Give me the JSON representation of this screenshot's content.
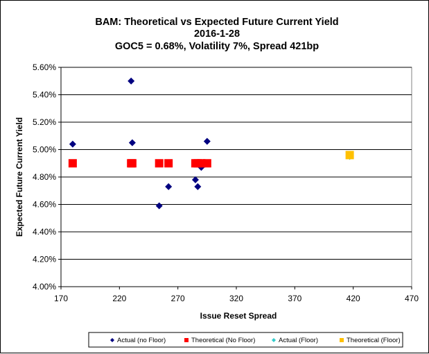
{
  "chart_data": {
    "type": "scatter",
    "title_lines": [
      "BAM: Theoretical vs Expected Future Current Yield",
      "2016-1-28",
      "GOC5 = 0.68%, Volatility 7%, Spread 421bp"
    ],
    "xlabel": "Issue Reset Spread",
    "ylabel": "Expected Future Current Yield",
    "xlim": [
      170,
      470
    ],
    "ylim": [
      4.0,
      5.6
    ],
    "x_ticks": [
      170,
      220,
      270,
      320,
      370,
      420,
      470
    ],
    "y_ticks": [
      4.0,
      4.2,
      4.4,
      4.6,
      4.8,
      5.0,
      5.2,
      5.4,
      5.6
    ],
    "x_tick_labels": [
      "170",
      "220",
      "270",
      "320",
      "370",
      "420",
      "470"
    ],
    "y_tick_labels": [
      "4.00%",
      "4.20%",
      "4.40%",
      "4.60%",
      "4.80%",
      "5.00%",
      "5.20%",
      "5.40%",
      "5.60%"
    ],
    "grid": "horizontal",
    "legend_position": "bottom",
    "series": [
      {
        "name": "Actual (no Floor)",
        "marker": "diamond",
        "color": "#000080",
        "points": [
          [
            180,
            5.04
          ],
          [
            230,
            5.5
          ],
          [
            231,
            5.05
          ],
          [
            254,
            4.59
          ],
          [
            262,
            4.73
          ],
          [
            285,
            4.78
          ],
          [
            287,
            4.73
          ],
          [
            290,
            4.87
          ],
          [
            295,
            5.06
          ]
        ]
      },
      {
        "name": "Theoretical (No Floor)",
        "marker": "square",
        "color": "#ff0000",
        "points": [
          [
            180,
            4.9
          ],
          [
            230,
            4.9
          ],
          [
            231,
            4.9
          ],
          [
            254,
            4.9
          ],
          [
            262,
            4.9
          ],
          [
            285,
            4.9
          ],
          [
            287,
            4.9
          ],
          [
            290,
            4.9
          ],
          [
            295,
            4.9
          ]
        ]
      },
      {
        "name": "Actual (Floor)",
        "marker": "diamond",
        "color": "#33cccc",
        "points": [
          [
            417,
            4.94
          ]
        ]
      },
      {
        "name": "Theoretical (Floor)",
        "marker": "square",
        "color": "#ffc000",
        "points": [
          [
            417,
            4.96
          ]
        ]
      }
    ]
  }
}
